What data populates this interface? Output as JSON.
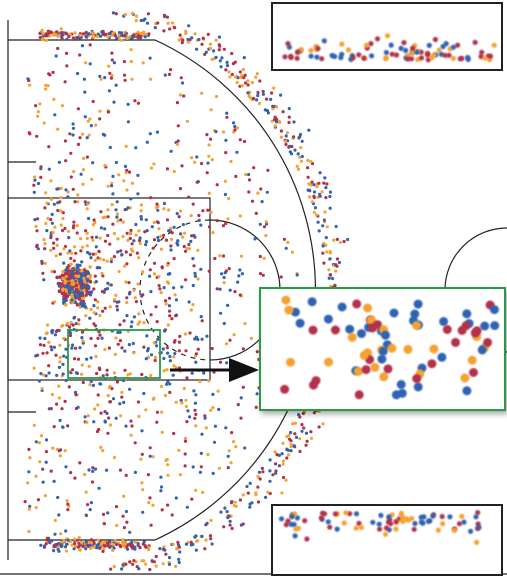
{
  "dot_colors": [
    "#b3304a",
    "#2f63b3",
    "#f4a233"
  ]
}
